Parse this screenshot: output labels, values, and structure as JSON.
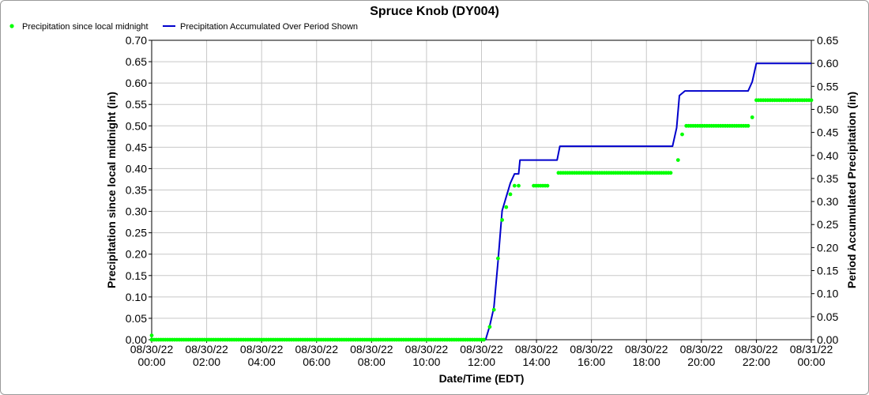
{
  "chart_data": {
    "type": "line",
    "title": "Spruce Knob (DY004)",
    "xlabel": "Date/Time (EDT)",
    "ylabel": "Precipitation since local midnight (in)",
    "y2label": "Period Accumulated Precipitation (in)",
    "xlim": [
      0,
      24
    ],
    "ylim": [
      0,
      0.7
    ],
    "y2lim": [
      0,
      0.65
    ],
    "grid": true,
    "legend_position": "top-left",
    "x_tick_labels": [
      {
        "x": 0,
        "date": "08/30/22",
        "time": "00:00"
      },
      {
        "x": 2,
        "date": "08/30/22",
        "time": "02:00"
      },
      {
        "x": 4,
        "date": "08/30/22",
        "time": "04:00"
      },
      {
        "x": 6,
        "date": "08/30/22",
        "time": "06:00"
      },
      {
        "x": 8,
        "date": "08/30/22",
        "time": "08:00"
      },
      {
        "x": 10,
        "date": "08/30/22",
        "time": "10:00"
      },
      {
        "x": 12,
        "date": "08/30/22",
        "time": "12:00"
      },
      {
        "x": 14,
        "date": "08/30/22",
        "time": "14:00"
      },
      {
        "x": 16,
        "date": "08/30/22",
        "time": "16:00"
      },
      {
        "x": 18,
        "date": "08/30/22",
        "time": "18:00"
      },
      {
        "x": 20,
        "date": "08/30/22",
        "time": "20:00"
      },
      {
        "x": 22,
        "date": "08/30/22",
        "time": "22:00"
      },
      {
        "x": 24,
        "date": "08/31/22",
        "time": "00:00"
      }
    ],
    "y_ticks": [
      "0.00",
      "0.05",
      "0.10",
      "0.15",
      "0.20",
      "0.25",
      "0.30",
      "0.35",
      "0.40",
      "0.45",
      "0.50",
      "0.55",
      "0.60",
      "0.65",
      "0.70"
    ],
    "y2_ticks": [
      "0.00",
      "0.05",
      "0.10",
      "0.15",
      "0.20",
      "0.25",
      "0.30",
      "0.35",
      "0.40",
      "0.45",
      "0.50",
      "0.55",
      "0.60",
      "0.65"
    ],
    "series": [
      {
        "name": "Precipitation since local midnight",
        "kind": "points",
        "axis": "left",
        "color": "#00ff00",
        "segments": [
          {
            "start": 0.0,
            "end": 12.15,
            "value": 0.0
          },
          {
            "start": 13.9,
            "end": 14.4,
            "value": 0.36
          },
          {
            "start": 14.8,
            "end": 18.95,
            "value": 0.39
          },
          {
            "start": 19.45,
            "end": 21.75,
            "value": 0.5
          },
          {
            "start": 22.0,
            "end": 24.0,
            "value": 0.56
          }
        ],
        "points": [
          [
            0.0,
            0.01
          ],
          [
            12.3,
            0.03
          ],
          [
            12.45,
            0.07
          ],
          [
            12.6,
            0.19
          ],
          [
            12.75,
            0.28
          ],
          [
            12.9,
            0.31
          ],
          [
            13.05,
            0.34
          ],
          [
            13.2,
            0.36
          ],
          [
            13.35,
            0.36
          ],
          [
            19.15,
            0.42
          ],
          [
            19.3,
            0.48
          ],
          [
            21.85,
            0.52
          ]
        ]
      },
      {
        "name": "Precipitation Accumulated Over Period Shown",
        "kind": "line",
        "axis": "right",
        "color": "#0000cc",
        "points": [
          [
            0,
            0.0
          ],
          [
            12.15,
            0.0
          ],
          [
            12.3,
            0.03
          ],
          [
            12.45,
            0.07
          ],
          [
            12.6,
            0.17
          ],
          [
            12.75,
            0.28
          ],
          [
            12.9,
            0.31
          ],
          [
            13.05,
            0.34
          ],
          [
            13.2,
            0.36
          ],
          [
            13.35,
            0.36
          ],
          [
            13.4,
            0.39
          ],
          [
            14.75,
            0.39
          ],
          [
            14.85,
            0.42
          ],
          [
            18.95,
            0.42
          ],
          [
            19.1,
            0.46
          ],
          [
            19.2,
            0.53
          ],
          [
            19.4,
            0.54
          ],
          [
            21.7,
            0.54
          ],
          [
            21.85,
            0.56
          ],
          [
            22.0,
            0.6
          ],
          [
            24.0,
            0.6
          ]
        ]
      }
    ]
  }
}
